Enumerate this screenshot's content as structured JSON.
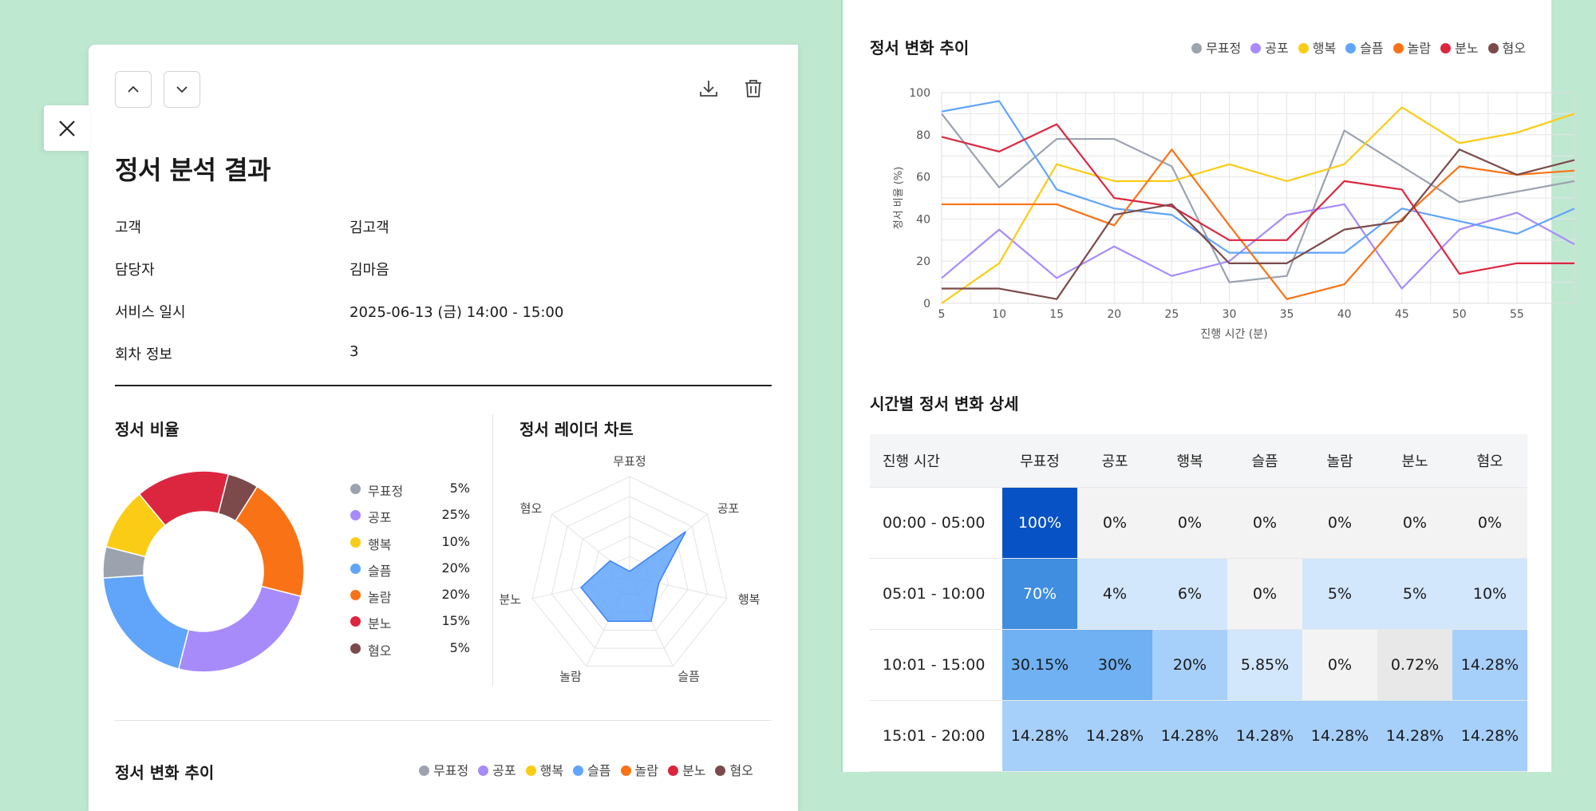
{
  "report": {
    "title": "정서 분석 결과",
    "info": [
      {
        "label": "고객",
        "value": "김고객"
      },
      {
        "label": "담당자",
        "value": "김마음"
      },
      {
        "label": "서비스 일시",
        "value": "2025-06-13 (금) 14:00 - 15:00"
      },
      {
        "label": "회차 정보",
        "value": "3"
      }
    ]
  },
  "sections": {
    "ratio_title": "정서 비율",
    "radar_title": "정서 레이더 차트",
    "trend_title": "정서 변화 추이",
    "table_title": "시간별 정서 변화 상세"
  },
  "emotions": [
    {
      "name": "무표정",
      "color": "#9ca3af"
    },
    {
      "name": "공포",
      "color": "#a78bfa"
    },
    {
      "name": "행복",
      "color": "#facc15"
    },
    {
      "name": "슬픔",
      "color": "#60a5fa"
    },
    {
      "name": "놀람",
      "color": "#f97316"
    },
    {
      "name": "분노",
      "color": "#dc2640"
    },
    {
      "name": "혐오",
      "color": "#7c4a4a"
    }
  ],
  "chart_data": [
    {
      "type": "pie",
      "title": "정서 비율",
      "categories": [
        "무표정",
        "공포",
        "행복",
        "슬픔",
        "놀람",
        "분노",
        "혐오"
      ],
      "values": [
        5,
        25,
        10,
        20,
        20,
        15,
        5
      ],
      "labels": [
        "5%",
        "25%",
        "10%",
        "20%",
        "20%",
        "15%",
        "5%"
      ],
      "legend": "right"
    },
    {
      "type": "radar",
      "title": "정서 레이더 차트",
      "categories": [
        "무표정",
        "공포",
        "행복",
        "슬픔",
        "놀람",
        "분노",
        "혐오"
      ],
      "values": [
        5,
        72,
        30,
        50,
        50,
        50,
        25
      ],
      "ylim": [
        0,
        100
      ]
    },
    {
      "type": "line",
      "title": "정서 변화 추이",
      "xlabel": "진행 시간 (분)",
      "ylabel": "정서 비율 (%)",
      "x": [
        5,
        10,
        15,
        20,
        25,
        30,
        35,
        40,
        45,
        50,
        55,
        60
      ],
      "x_ticks": [
        "5",
        "10",
        "15",
        "20",
        "25",
        "30",
        "35",
        "40",
        "45",
        "50",
        "55"
      ],
      "ylim": [
        0,
        100
      ],
      "y_ticks": [
        "0",
        "20",
        "40",
        "60",
        "80",
        "100"
      ],
      "grid": true,
      "legend": "top-right",
      "series": [
        {
          "name": "무표정",
          "values": [
            90,
            55,
            78,
            78,
            65,
            10,
            13,
            82,
            65,
            48,
            53,
            58
          ]
        },
        {
          "name": "공포",
          "values": [
            12,
            35,
            12,
            27,
            13,
            20,
            42,
            47,
            7,
            35,
            43,
            28
          ]
        },
        {
          "name": "행복",
          "values": [
            0,
            19,
            66,
            58,
            58,
            66,
            58,
            66,
            93,
            76,
            81,
            90
          ]
        },
        {
          "name": "슬픔",
          "values": [
            91,
            96,
            54,
            45,
            42,
            24,
            24,
            24,
            45,
            39,
            33,
            45
          ]
        },
        {
          "name": "놀람",
          "values": [
            47,
            47,
            47,
            37,
            73,
            37,
            2,
            9,
            40,
            65,
            61,
            63
          ]
        },
        {
          "name": "분노",
          "values": [
            79,
            72,
            85,
            50,
            46,
            30,
            30,
            58,
            54,
            14,
            19,
            19
          ]
        },
        {
          "name": "혐오",
          "values": [
            7,
            7,
            2,
            42,
            47,
            19,
            19,
            35,
            39,
            73,
            61,
            68
          ]
        }
      ]
    }
  ],
  "table": {
    "header_time": "진행 시간",
    "rows": [
      {
        "time": "00:00 - 05:00",
        "cells": [
          "100%",
          "0%",
          "0%",
          "0%",
          "0%",
          "0%",
          "0%"
        ],
        "levels": [
          100,
          0,
          0,
          0,
          0,
          0,
          0
        ]
      },
      {
        "time": "05:01 - 10:00",
        "cells": [
          "70%",
          "4%",
          "6%",
          "0%",
          "5%",
          "5%",
          "10%"
        ],
        "levels": [
          70,
          4,
          6,
          0,
          5,
          5,
          10
        ]
      },
      {
        "time": "10:01 - 15:00",
        "cells": [
          "30.15%",
          "30%",
          "20%",
          "5.85%",
          "0%",
          "0.72%",
          "14.28%"
        ],
        "levels": [
          30.15,
          30,
          20,
          5.85,
          0,
          0.72,
          14.28
        ]
      },
      {
        "time": "15:01 - 20:00",
        "cells": [
          "14.28%",
          "14.28%",
          "14.28%",
          "14.28%",
          "14.28%",
          "14.28%",
          "14.28%"
        ],
        "levels": [
          14.28,
          14.28,
          14.28,
          14.28,
          14.28,
          14.28,
          14.28
        ]
      }
    ]
  }
}
